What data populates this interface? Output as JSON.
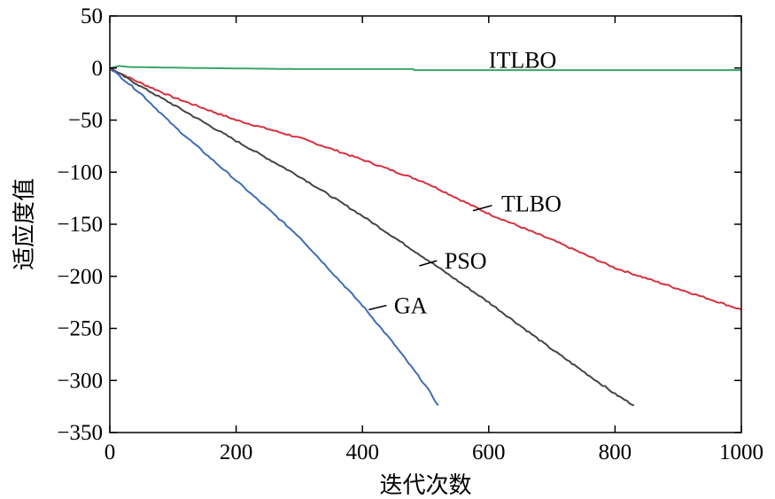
{
  "chart_data": {
    "type": "line",
    "title": "",
    "xlabel": "迭代次数",
    "ylabel": "适应度值",
    "xlim": [
      0,
      1000
    ],
    "ylim": [
      -350,
      50
    ],
    "xticks": [
      "0",
      "200",
      "400",
      "600",
      "800",
      "1000"
    ],
    "yticks": [
      "50",
      "0",
      "−50",
      "−100",
      "−150",
      "−200",
      "−250",
      "−300",
      "−350"
    ],
    "grid": false,
    "series": [
      {
        "name": "ITLBO",
        "color": "#3aa66a",
        "points": [
          [
            0,
            0
          ],
          [
            15,
            2
          ],
          [
            30,
            1
          ],
          [
            140,
            0
          ],
          [
            300,
            -1
          ],
          [
            480,
            -1
          ],
          [
            482,
            -2
          ],
          [
            700,
            -2
          ],
          [
            1000,
            -2
          ]
        ]
      },
      {
        "name": "TLBO",
        "color": "#d6303f",
        "points": [
          [
            0,
            0
          ],
          [
            40,
            -12
          ],
          [
            100,
            -28
          ],
          [
            200,
            -50
          ],
          [
            300,
            -67
          ],
          [
            400,
            -88
          ],
          [
            500,
            -110
          ],
          [
            600,
            -140
          ],
          [
            700,
            -165
          ],
          [
            800,
            -192
          ],
          [
            900,
            -212
          ],
          [
            1000,
            -232
          ]
        ]
      },
      {
        "name": "PSO",
        "color": "#444444",
        "points": [
          [
            0,
            0
          ],
          [
            50,
            -18
          ],
          [
            100,
            -35
          ],
          [
            200,
            -70
          ],
          [
            300,
            -104
          ],
          [
            400,
            -142
          ],
          [
            500,
            -183
          ],
          [
            600,
            -225
          ],
          [
            700,
            -270
          ],
          [
            800,
            -313
          ],
          [
            830,
            -324
          ]
        ]
      },
      {
        "name": "GA",
        "color": "#3e6db5",
        "points": [
          [
            0,
            0
          ],
          [
            50,
            -25
          ],
          [
            100,
            -55
          ],
          [
            200,
            -108
          ],
          [
            300,
            -162
          ],
          [
            400,
            -228
          ],
          [
            450,
            -265
          ],
          [
            500,
            -305
          ],
          [
            520,
            -324
          ]
        ]
      }
    ],
    "annotations": [
      {
        "series": "ITLBO",
        "text": "ITLBO",
        "x": 600,
        "y": 8
      },
      {
        "series": "TLBO",
        "text": "TLBO",
        "x": 620,
        "y": -130,
        "pointer_from": [
          575,
          -137
        ],
        "pointer_to": [
          605,
          -132
        ]
      },
      {
        "series": "PSO",
        "text": "PSO",
        "x": 530,
        "y": -185,
        "pointer_from": [
          490,
          -190
        ],
        "pointer_to": [
          518,
          -185
        ]
      },
      {
        "series": "GA",
        "text": "GA",
        "x": 450,
        "y": -228,
        "pointer_from": [
          410,
          -232
        ],
        "pointer_to": [
          438,
          -228
        ]
      }
    ]
  }
}
